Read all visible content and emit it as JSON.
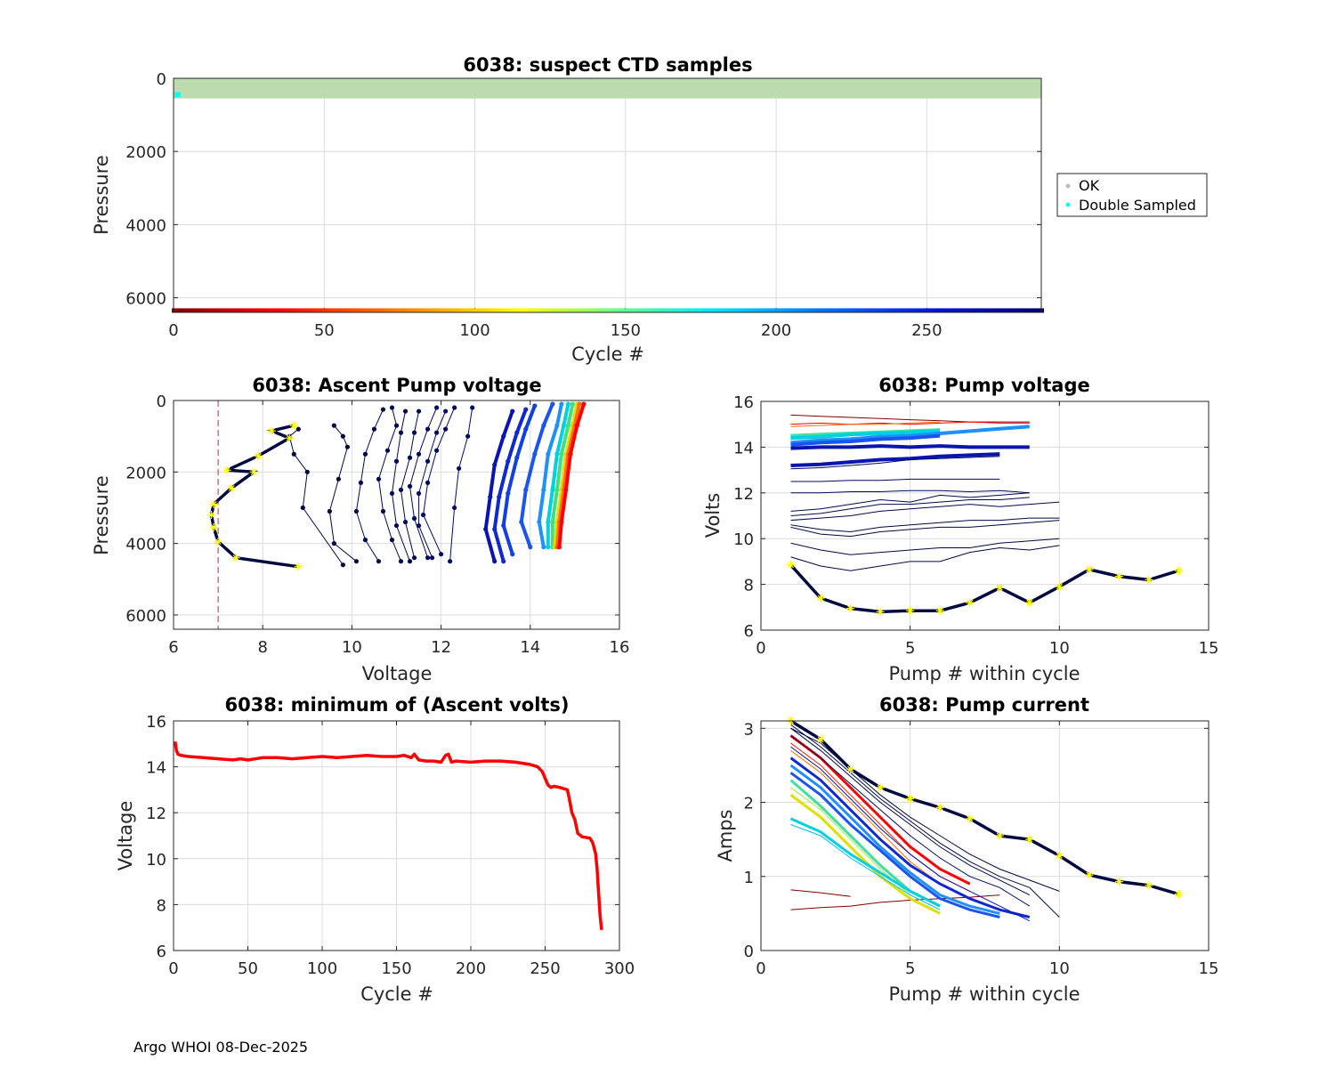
{
  "footer": "Argo WHOI 08-Dec-2025",
  "colors": {
    "ok": "#bdbdbd",
    "ok_fill": "#bcdcb0",
    "double_sampled": "#00ffff",
    "min_volt_line": "#ff0000",
    "threshold": "#b0304a",
    "dark_trace": "#000a40",
    "marker": "#ffff00"
  },
  "chart_data": [
    {
      "id": "ctd",
      "type": "scatter",
      "title": "6038: suspect CTD samples",
      "xlabel": "Cycle #",
      "ylabel": "Pressure",
      "xlim": [
        0,
        288
      ],
      "ylim": [
        6400,
        0
      ],
      "xticks": [
        0,
        50,
        100,
        150,
        200,
        250
      ],
      "yticks": [
        0,
        2000,
        4000,
        6000
      ],
      "ok_band": {
        "x": [
          0,
          288
        ],
        "p": [
          0,
          550
        ]
      },
      "double_sampled": {
        "x": [
          1,
          2
        ],
        "p": [
          380,
          520
        ]
      },
      "cycle_color_bar_pressure": 6350,
      "legend": [
        "OK",
        "Double Sampled"
      ]
    },
    {
      "id": "ascent",
      "type": "line",
      "title": "6038: Ascent Pump voltage",
      "xlabel": "Voltage",
      "ylabel": "Pressure",
      "xlim": [
        6,
        16
      ],
      "ylim": [
        6400,
        0
      ],
      "xticks": [
        6,
        8,
        10,
        12,
        14,
        16
      ],
      "yticks": [
        0,
        2000,
        4000,
        6000
      ],
      "threshold_voltage": 7,
      "last_profile": {
        "v": [
          8.7,
          8.2,
          8.6,
          7.9,
          7.2,
          7.8,
          7.3,
          6.9,
          6.85,
          6.9,
          7.0,
          7.4,
          8.8
        ],
        "p": [
          700,
          850,
          1050,
          1550,
          1950,
          2000,
          2450,
          2900,
          3200,
          3550,
          3950,
          4400,
          4650
        ]
      },
      "profiles": [
        {
          "v": [
            8.8,
            8.6,
            8.7,
            9.0,
            8.9,
            9.8
          ],
          "p": [
            800,
            1000,
            1500,
            2000,
            3000,
            4600
          ],
          "c": "#000a40"
        },
        {
          "v": [
            9.6,
            9.8,
            9.9,
            9.7,
            9.5,
            9.6,
            10.1
          ],
          "p": [
            700,
            1000,
            1300,
            2200,
            3100,
            4000,
            4500
          ],
          "c": "#000a40"
        },
        {
          "v": [
            10.7,
            10.5,
            10.3,
            10.2,
            10.1,
            10.3,
            10.6
          ],
          "p": [
            250,
            800,
            1500,
            2300,
            3100,
            3900,
            4500
          ],
          "c": "#000a50"
        },
        {
          "v": [
            10.9,
            11.0,
            10.8,
            10.6,
            10.7,
            10.9,
            11.1
          ],
          "p": [
            200,
            700,
            1400,
            2200,
            3100,
            3900,
            4500
          ],
          "c": "#000a50"
        },
        {
          "v": [
            11.2,
            11.1,
            11.0,
            10.9,
            11.0,
            11.3
          ],
          "p": [
            300,
            900,
            1700,
            2600,
            3500,
            4500
          ],
          "c": "#000a50"
        },
        {
          "v": [
            11.5,
            11.4,
            11.3,
            11.1,
            11.2,
            11.4
          ],
          "p": [
            300,
            900,
            1600,
            2500,
            3400,
            4400
          ],
          "c": "#000a50"
        },
        {
          "v": [
            11.9,
            11.7,
            11.5,
            11.3,
            11.4,
            11.7
          ],
          "p": [
            200,
            800,
            1500,
            2400,
            3300,
            4400
          ],
          "c": "#000a60"
        },
        {
          "v": [
            12.1,
            11.9,
            11.7,
            11.5,
            11.5,
            11.8
          ],
          "p": [
            300,
            900,
            1700,
            2600,
            3500,
            4400
          ],
          "c": "#000a60"
        },
        {
          "v": [
            12.3,
            12.1,
            11.9,
            11.7,
            11.6,
            12.0
          ],
          "p": [
            200,
            800,
            1400,
            2300,
            3200,
            4300
          ],
          "c": "#000a60"
        },
        {
          "v": [
            12.7,
            12.6,
            12.4,
            12.3,
            12.2
          ],
          "p": [
            200,
            1000,
            1900,
            3000,
            4500
          ],
          "c": "#000a60"
        },
        {
          "v": [
            13.6,
            13.4,
            13.2,
            13.1,
            13.0,
            13.2
          ],
          "p": [
            300,
            1000,
            1800,
            2700,
            3600,
            4500
          ],
          "c": "#0a14b0"
        },
        {
          "v": [
            13.9,
            13.7,
            13.5,
            13.3,
            13.2,
            13.4
          ],
          "p": [
            250,
            900,
            1700,
            2700,
            3600,
            4500
          ],
          "c": "#0f28d0"
        },
        {
          "v": [
            14.1,
            13.9,
            13.7,
            13.5,
            13.4,
            13.6
          ],
          "p": [
            150,
            800,
            1600,
            2600,
            3500,
            4300
          ],
          "c": "#1040e0"
        },
        {
          "v": [
            14.5,
            14.3,
            14.1,
            13.9,
            13.8,
            14.0
          ],
          "p": [
            100,
            700,
            1500,
            2500,
            3400,
            4100
          ],
          "c": "#1a55f0"
        },
        {
          "v": [
            14.7,
            14.6,
            14.4,
            14.3,
            14.2,
            14.3
          ],
          "p": [
            100,
            700,
            1500,
            2500,
            3400,
            4100
          ],
          "c": "#1e90ff"
        },
        {
          "v": [
            14.85,
            14.75,
            14.6,
            14.5,
            14.4,
            14.4
          ],
          "p": [
            100,
            700,
            1500,
            2500,
            3400,
            4100
          ],
          "c": "#00d0e0"
        },
        {
          "v": [
            14.95,
            14.85,
            14.7,
            14.6,
            14.5,
            14.5
          ],
          "p": [
            100,
            700,
            1500,
            2500,
            3400,
            4100
          ],
          "c": "#40e080"
        },
        {
          "v": [
            15.05,
            14.95,
            14.8,
            14.7,
            14.6,
            14.55
          ],
          "p": [
            100,
            700,
            1500,
            2500,
            3400,
            4100
          ],
          "c": "#e0e000"
        },
        {
          "v": [
            15.1,
            15.0,
            14.85,
            14.75,
            14.65,
            14.6
          ],
          "p": [
            100,
            700,
            1500,
            2500,
            3400,
            4100
          ],
          "c": "#ff7000"
        },
        {
          "v": [
            15.2,
            15.05,
            14.9,
            14.8,
            14.7,
            14.65
          ],
          "p": [
            100,
            700,
            1500,
            2500,
            3400,
            4100
          ],
          "c": "#ff0000"
        }
      ]
    },
    {
      "id": "pumpv",
      "type": "line",
      "title": "6038: Pump voltage",
      "xlabel": "Pump # within cycle",
      "ylabel": "Volts",
      "xlim": [
        0,
        15
      ],
      "ylim": [
        6,
        16
      ],
      "xticks": [
        0,
        5,
        10,
        15
      ],
      "yticks": [
        6,
        8,
        10,
        12,
        14,
        16
      ],
      "last_cycle": [
        8.85,
        7.4,
        6.95,
        6.8,
        6.85,
        6.85,
        7.2,
        7.85,
        7.2,
        7.9,
        8.65,
        8.35,
        8.2,
        8.6
      ],
      "series": [
        {
          "y": [
            15.4,
            15.35,
            15.3,
            15.25,
            15.2,
            15.15,
            15.1,
            15.1,
            15.1
          ],
          "c": "#800000"
        },
        {
          "y": [
            15.0,
            15.05,
            15.0,
            15.05,
            15.0,
            15.05,
            15.1,
            15.05,
            15.05
          ],
          "c": "#ff0000"
        },
        {
          "y": [
            14.9,
            14.95,
            15.0,
            15.0,
            15.05,
            15.1
          ],
          "c": "#ff7000"
        },
        {
          "y": [
            14.5,
            14.55,
            14.6,
            14.65,
            14.7,
            14.75
          ],
          "c": "#40e0a0"
        },
        {
          "y": [
            14.4,
            14.45,
            14.55,
            14.6,
            14.65,
            14.7
          ],
          "c": "#00d0e0"
        },
        {
          "y": [
            14.2,
            14.3,
            14.35,
            14.45,
            14.5,
            14.6,
            14.7,
            14.8,
            14.9
          ],
          "c": "#1e90ff"
        },
        {
          "y": [
            14.1,
            14.2,
            14.25,
            14.35,
            14.4,
            14.5
          ],
          "c": "#1a55f0"
        },
        {
          "y": [
            13.95,
            14.0,
            14.0,
            14.05,
            14.0,
            14.05,
            14.0,
            14.0,
            14.0
          ],
          "c": "#0a14b0"
        },
        {
          "y": [
            13.2,
            13.25,
            13.35,
            13.45,
            13.5,
            13.6,
            13.65,
            13.7
          ],
          "c": "#0a14b0"
        },
        {
          "y": [
            13.05,
            13.1,
            13.2,
            13.3,
            13.45,
            13.5,
            13.55,
            13.6
          ],
          "c": "#000a60"
        },
        {
          "y": [
            12.5,
            12.5,
            12.55,
            12.55,
            12.6,
            12.6,
            12.6,
            12.6
          ],
          "c": "#000a60"
        },
        {
          "y": [
            12.0,
            12.0,
            12.05,
            12.05,
            12.1,
            12.1,
            12.05,
            12.1,
            12.0
          ],
          "c": "#000a60"
        },
        {
          "y": [
            11.2,
            11.3,
            11.5,
            11.7,
            11.6,
            11.9,
            11.8,
            11.9,
            12.0
          ],
          "c": "#000a50"
        },
        {
          "y": [
            11.0,
            11.1,
            11.3,
            11.5,
            11.5,
            11.6,
            11.7,
            11.7,
            11.8
          ],
          "c": "#000a50"
        },
        {
          "y": [
            10.8,
            10.9,
            11.0,
            11.2,
            11.3,
            11.4,
            11.5,
            11.4,
            11.5,
            11.6
          ],
          "c": "#000a50"
        },
        {
          "y": [
            10.6,
            10.4,
            10.3,
            10.5,
            10.6,
            10.7,
            10.8,
            10.8,
            10.9,
            10.9
          ],
          "c": "#000a40"
        },
        {
          "y": [
            10.5,
            10.2,
            10.1,
            10.3,
            10.4,
            10.5,
            10.5,
            10.6,
            10.7,
            10.8
          ],
          "c": "#000a40"
        },
        {
          "y": [
            9.8,
            9.5,
            9.3,
            9.4,
            9.5,
            9.6,
            9.6,
            9.8,
            9.9,
            10.0
          ],
          "c": "#000a40"
        },
        {
          "y": [
            9.2,
            8.8,
            8.6,
            8.8,
            9.0,
            9.0,
            9.4,
            9.6,
            9.5,
            9.7
          ],
          "c": "#000a40"
        }
      ]
    },
    {
      "id": "minv",
      "type": "line",
      "title": "6038: minimum of (Ascent volts)",
      "xlabel": "Cycle #",
      "ylabel": "Voltage",
      "xlim": [
        0,
        300
      ],
      "ylim": [
        6,
        16
      ],
      "xticks": [
        0,
        50,
        100,
        150,
        200,
        250,
        300
      ],
      "yticks": [
        6,
        8,
        10,
        12,
        14,
        16
      ],
      "x": [
        1,
        2,
        3,
        5,
        10,
        20,
        30,
        40,
        45,
        50,
        60,
        70,
        80,
        90,
        100,
        110,
        120,
        130,
        140,
        150,
        155,
        160,
        162,
        165,
        170,
        175,
        180,
        183,
        185,
        187,
        190,
        200,
        210,
        220,
        230,
        240,
        245,
        248,
        250,
        252,
        254,
        256,
        260,
        265,
        266,
        268,
        270,
        272,
        275,
        280,
        282,
        284,
        285,
        286,
        287,
        288
      ],
      "values": [
        15.1,
        14.7,
        14.55,
        14.5,
        14.45,
        14.4,
        14.35,
        14.3,
        14.35,
        14.3,
        14.4,
        14.4,
        14.35,
        14.4,
        14.45,
        14.4,
        14.45,
        14.5,
        14.45,
        14.45,
        14.5,
        14.4,
        14.55,
        14.3,
        14.25,
        14.25,
        14.2,
        14.5,
        14.55,
        14.2,
        14.25,
        14.2,
        14.25,
        14.25,
        14.2,
        14.1,
        14.0,
        13.8,
        13.5,
        13.2,
        13.1,
        13.15,
        13.1,
        13.0,
        12.7,
        12.0,
        11.7,
        11.1,
        10.95,
        10.9,
        10.7,
        10.2,
        9.5,
        8.5,
        7.5,
        6.9
      ]
    },
    {
      "id": "pumpc",
      "type": "line",
      "title": "6038: Pump current",
      "xlabel": "Pump # within cycle",
      "ylabel": "Amps",
      "xlim": [
        0,
        15
      ],
      "ylim": [
        0,
        3.1
      ],
      "xticks": [
        0,
        5,
        10,
        15
      ],
      "yticks": [
        0,
        1,
        2,
        3
      ],
      "last_cycle": [
        3.1,
        2.85,
        2.45,
        2.2,
        2.05,
        1.93,
        1.78,
        1.55,
        1.5,
        1.28,
        1.02,
        0.93,
        0.88,
        0.76
      ],
      "series": [
        {
          "y": [
            0.82,
            0.78,
            0.73
          ],
          "c": "#800000"
        },
        {
          "y": [
            0.55,
            0.58,
            0.6,
            0.65,
            0.68,
            0.7,
            0.72,
            0.75
          ],
          "c": "#800000"
        },
        {
          "y": [
            2.9,
            2.6,
            2.2,
            1.8,
            1.4,
            1.1,
            0.9
          ],
          "c": "#ff0000"
        },
        {
          "y": [
            2.8,
            2.5,
            2.1,
            1.7,
            1.3,
            1.0,
            0.8
          ],
          "c": "#ff2000"
        },
        {
          "y": [
            2.7,
            2.4,
            2.0,
            1.6,
            1.2,
            0.9
          ],
          "c": "#ff7000"
        },
        {
          "y": [
            2.1,
            1.8,
            1.4,
            1.0,
            0.7,
            0.5
          ],
          "c": "#e0e000"
        },
        {
          "y": [
            2.2,
            1.9,
            1.5,
            1.1,
            0.75,
            0.55
          ],
          "c": "#a0f040"
        },
        {
          "y": [
            2.3,
            1.95,
            1.55,
            1.15,
            0.8,
            0.6
          ],
          "c": "#40e0a0"
        },
        {
          "y": [
            1.78,
            1.6,
            1.3,
            1.05,
            0.8,
            0.6
          ],
          "c": "#00d0e0"
        },
        {
          "y": [
            1.7,
            1.55,
            1.25,
            1.0,
            0.75,
            0.55
          ],
          "c": "#00c0ff"
        },
        {
          "y": [
            2.5,
            2.2,
            1.8,
            1.4,
            1.05,
            0.75,
            0.6,
            0.5
          ],
          "c": "#1e90ff"
        },
        {
          "y": [
            2.4,
            2.1,
            1.7,
            1.35,
            1.0,
            0.7,
            0.55,
            0.45
          ],
          "c": "#1a55f0"
        },
        {
          "y": [
            2.6,
            2.3,
            1.9,
            1.5,
            1.15,
            0.9,
            0.7,
            0.55,
            0.45
          ],
          "c": "#0f28d0"
        },
        {
          "y": [
            2.75,
            2.45,
            2.05,
            1.65,
            1.3,
            1.0,
            0.8,
            0.6,
            0.4
          ],
          "c": "#0a14b0"
        },
        {
          "y": [
            2.9,
            2.6,
            2.25,
            1.9,
            1.55,
            1.25,
            1.0,
            0.85,
            0.6
          ],
          "c": "#000a60"
        },
        {
          "y": [
            3.0,
            2.7,
            2.35,
            2.0,
            1.7,
            1.4,
            1.15,
            0.95,
            0.75
          ],
          "c": "#000a50"
        },
        {
          "y": [
            3.05,
            2.75,
            2.4,
            2.05,
            1.75,
            1.45,
            1.2,
            1.0,
            0.85,
            0.45
          ],
          "c": "#000a40"
        },
        {
          "y": [
            3.0,
            2.8,
            2.45,
            2.1,
            1.8,
            1.55,
            1.3,
            1.1,
            0.95,
            0.8
          ],
          "c": "#000a40"
        }
      ]
    }
  ]
}
